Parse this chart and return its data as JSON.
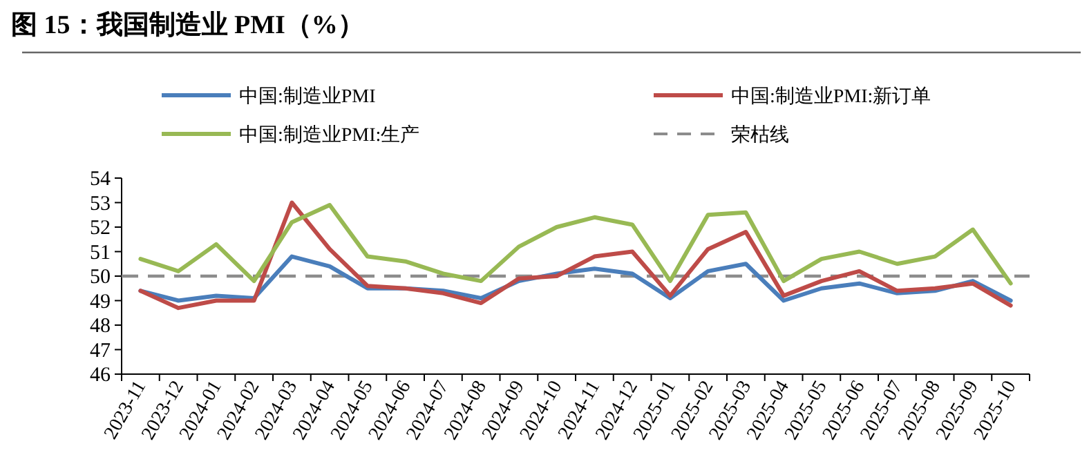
{
  "chart_data": {
    "type": "line",
    "title": "图 15：我国制造业 PMI（%）",
    "categories": [
      "2023-11",
      "2023-12",
      "2024-01",
      "2024-02",
      "2024-03",
      "2024-04",
      "2024-05",
      "2024-06",
      "2024-07",
      "2024-08",
      "2024-09",
      "2024-10",
      "2024-11",
      "2024-12",
      "2025-01",
      "2025-02",
      "2025-03",
      "2025-04",
      "2025-05",
      "2025-06",
      "2025-07",
      "2025-08",
      "2025-09",
      "2025-10"
    ],
    "series": [
      {
        "name": "中国:制造业PMI",
        "color": "#4a7ebb",
        "values": [
          49.4,
          49.0,
          49.2,
          49.1,
          50.8,
          50.4,
          49.5,
          49.5,
          49.4,
          49.1,
          49.8,
          50.1,
          50.3,
          50.1,
          49.1,
          50.2,
          50.5,
          49.0,
          49.5,
          49.7,
          49.3,
          49.4,
          49.8,
          49.0
        ]
      },
      {
        "name": "中国:制造业PMI:新订单",
        "color": "#be4b48",
        "values": [
          49.4,
          48.7,
          49.0,
          49.0,
          53.0,
          51.1,
          49.6,
          49.5,
          49.3,
          48.9,
          49.9,
          50.0,
          50.8,
          51.0,
          49.2,
          51.1,
          51.8,
          49.2,
          49.8,
          50.2,
          49.4,
          49.5,
          49.7,
          48.8
        ]
      },
      {
        "name": "中国:制造业PMI:生产",
        "color": "#98b954",
        "values": [
          50.7,
          50.2,
          51.3,
          49.8,
          52.2,
          52.9,
          50.8,
          50.6,
          50.1,
          49.8,
          51.2,
          52.0,
          52.4,
          52.1,
          49.8,
          52.5,
          52.6,
          49.8,
          50.7,
          51.0,
          50.5,
          50.8,
          51.9,
          49.7
        ]
      }
    ],
    "ref_lines": [
      {
        "axis": "y",
        "value": 50,
        "label": "荣枯线",
        "color": "#8c8c8c",
        "line_style": "dashed"
      }
    ],
    "ylim": [
      46,
      54
    ],
    "yticks": [
      46,
      47,
      48,
      49,
      50,
      51,
      52,
      53,
      54
    ],
    "grid": false,
    "legend": "top",
    "marker": "none",
    "line_style": "solid"
  }
}
